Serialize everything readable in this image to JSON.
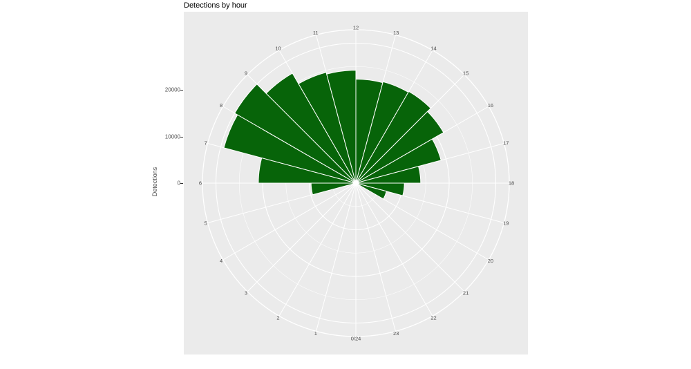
{
  "title": "Detections by hour",
  "radial_axis": {
    "label": "Detections",
    "ticks": [
      {
        "label": "0",
        "value": 0
      },
      {
        "label": "10000",
        "value": 10000
      },
      {
        "label": "20000",
        "value": 20000
      }
    ]
  },
  "hour_labels": [
    "0/24",
    "1",
    "2",
    "3",
    "4",
    "5",
    "6",
    "7",
    "8",
    "9",
    "10",
    "11",
    "12",
    "13",
    "14",
    "15",
    "16",
    "17",
    "18",
    "19",
    "20",
    "21",
    "22",
    "23"
  ],
  "colors": {
    "bar_fill": "#076409",
    "panel_bg": "#ebebeb",
    "grid": "#ffffff",
    "label": "#4d4d4d",
    "title": "#000000"
  },
  "chart_data": {
    "type": "bar",
    "coord": "polar",
    "title": "Detections by hour",
    "ylabel": "Detections",
    "categories": [
      0,
      1,
      2,
      3,
      4,
      5,
      6,
      7,
      8,
      9,
      10,
      11,
      12,
      13,
      14,
      15,
      16,
      17,
      18,
      19,
      20,
      21,
      22,
      23
    ],
    "values": [
      0,
      0,
      0,
      0,
      0,
      9600,
      20900,
      29300,
      30000,
      27200,
      24600,
      24200,
      22300,
      22500,
      22700,
      21700,
      18900,
      13900,
      10400,
      6800,
      0,
      0,
      0,
      0
    ],
    "ylim": [
      0,
      32800
    ],
    "radial_tick_values": [
      0,
      10000,
      20000
    ],
    "minor_tick_values": [
      5000,
      15000,
      25000
    ],
    "major_circle_values": [
      10000,
      20000,
      30000
    ],
    "hours_direction": "counterclockwise, 0 at bottom, 12 at top",
    "grid": true,
    "legend": "none"
  }
}
